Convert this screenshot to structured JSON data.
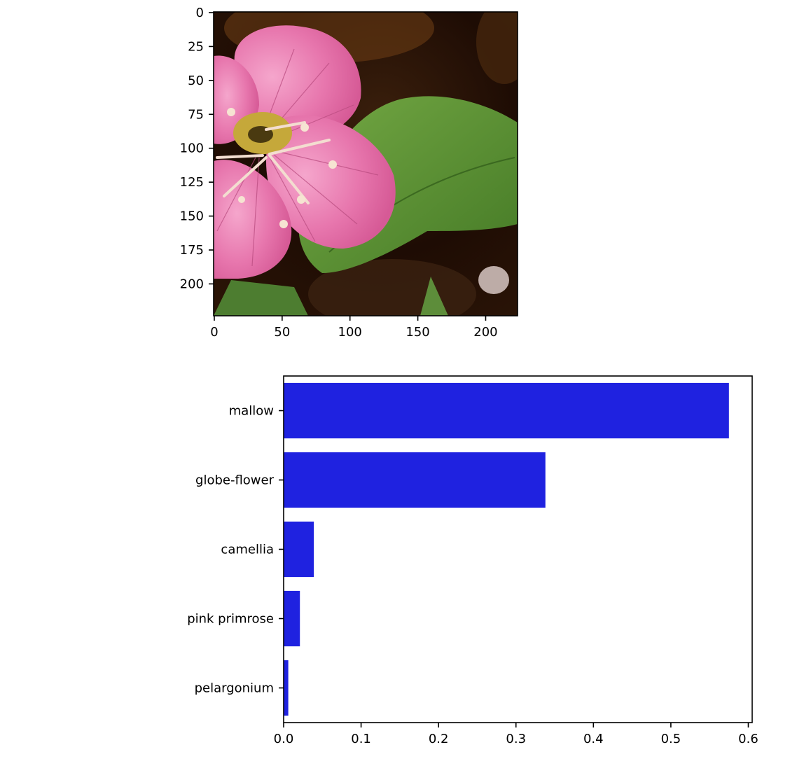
{
  "chart_data": [
    {
      "type": "image",
      "subject": "pink primrose flower with green leaf on dark background",
      "x_ticks": [
        "0",
        "50",
        "100",
        "150",
        "200"
      ],
      "y_ticks": [
        "0",
        "25",
        "50",
        "75",
        "100",
        "125",
        "150",
        "175",
        "200"
      ],
      "xlim": [
        -0.5,
        223.5
      ],
      "ylim": [
        223.5,
        -0.5
      ]
    },
    {
      "type": "bar",
      "orientation": "horizontal",
      "categories": [
        "mallow",
        "globe-flower",
        "camellia",
        "pink primrose",
        "pelargonium"
      ],
      "values": [
        0.575,
        0.338,
        0.039,
        0.021,
        0.006
      ],
      "x_ticks": [
        "0.0",
        "0.1",
        "0.2",
        "0.3",
        "0.4",
        "0.5",
        "0.6"
      ],
      "xlim": [
        0,
        0.605
      ],
      "bar_color": "#1f22e0",
      "grid": false
    }
  ]
}
